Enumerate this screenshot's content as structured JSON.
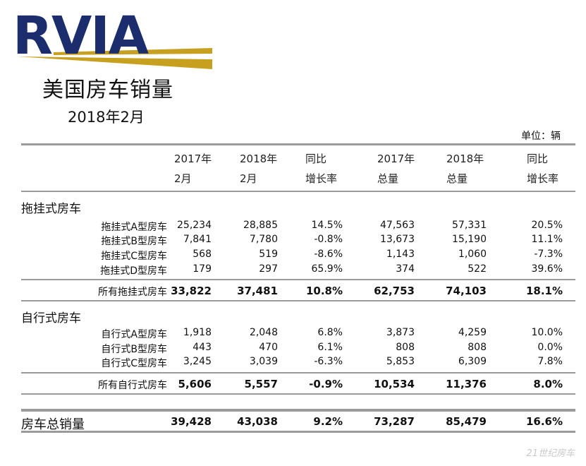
{
  "logo_text": "RVIA",
  "title": "美国房车销量",
  "subtitle": "2018年2月",
  "unit": "单位：辆",
  "headers": [
    [
      "2017年",
      "2月"
    ],
    [
      "2018年",
      "2月"
    ],
    [
      "同比",
      "增长率"
    ],
    [
      "2017年",
      "总量"
    ],
    [
      "2018年",
      "总量"
    ],
    [
      "同比",
      "增长率"
    ]
  ],
  "towable": {
    "section_label": "拖挂式房车",
    "rows": [
      {
        "label": "拖挂式A型房车",
        "values": [
          "25,234",
          "28,885",
          "14.5%",
          "47,563",
          "57,331",
          "20.5%"
        ]
      },
      {
        "label": "拖挂式B型房车",
        "values": [
          "7,841",
          "7,780",
          "-0.8%",
          "13,673",
          "15,190",
          "11.1%"
        ]
      },
      {
        "label": "拖挂式C型房车",
        "values": [
          "568",
          "519",
          "-8.6%",
          "1,143",
          "1,060",
          "-7.3%"
        ]
      },
      {
        "label": "拖挂式D型房车",
        "values": [
          "179",
          "297",
          "65.9%",
          "374",
          "522",
          "39.6%"
        ]
      }
    ],
    "subtotal": {
      "label": "所有拖挂式房车",
      "values": [
        "33,822",
        "37,481",
        "10.8%",
        "62,753",
        "74,103",
        "18.1%"
      ]
    }
  },
  "motorized": {
    "section_label": "自行式房车",
    "rows": [
      {
        "label": "自行式A型房车",
        "values": [
          "1,918",
          "2,048",
          "6.8%",
          "3,873",
          "4,259",
          "10.0%"
        ]
      },
      {
        "label": "自行式B型房车",
        "values": [
          "443",
          "470",
          "6.1%",
          "808",
          "808",
          "0.0%"
        ]
      },
      {
        "label": "自行式C型房车",
        "values": [
          "3,245",
          "3,039",
          "-6.3%",
          "5,853",
          "6,309",
          "7.8%"
        ]
      }
    ],
    "subtotal": {
      "label": "所有自行式房车",
      "values": [
        "5,606",
        "5,557",
        "-0.9%",
        "10,534",
        "11,376",
        "8.0%"
      ]
    }
  },
  "grand_total": {
    "label": "房车总销量",
    "values": [
      "39,428",
      "43,038",
      "9.2%",
      "73,287",
      "85,479",
      "16.6%"
    ]
  },
  "watermark": "21世纪房车",
  "colors": {
    "logo_navy": "#1c2d6e",
    "logo_gold": "#c8a020"
  }
}
